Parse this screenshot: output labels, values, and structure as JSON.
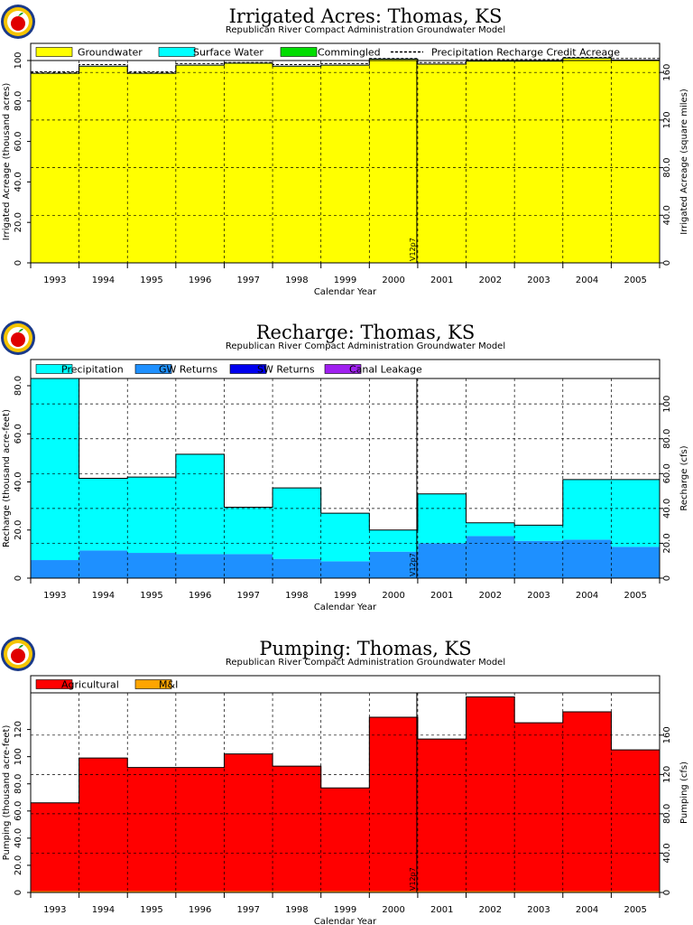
{
  "years": [
    "1993",
    "1994",
    "1995",
    "1996",
    "1997",
    "1998",
    "1999",
    "2000",
    "2001",
    "2002",
    "2003",
    "2004",
    "2005"
  ],
  "charts": [
    {
      "id": "acres",
      "title": "Irrigated Acres: Thomas, KS",
      "subtitle": "Republican River Compact Administration Groundwater Model",
      "xlabel": "Calendar Year",
      "ylabel_left": "Irrigated Acreage (thousand acres)",
      "ylabel_right": "Irrigated Acreage (square miles)",
      "left_ticks": [
        "0",
        "20.0",
        "40.0",
        "60.0",
        "80.0",
        "100"
      ],
      "right_ticks": [
        "0",
        "40.0",
        "80.0",
        "120",
        "160"
      ],
      "legend": [
        {
          "label": "Groundwater",
          "color": "#ffff00",
          "kind": "box"
        },
        {
          "label": "Surface Water",
          "color": "#00ffff",
          "kind": "box"
        },
        {
          "label": "Commingled",
          "color": "#00dd00",
          "kind": "box"
        },
        {
          "label": "Precipitation Recharge Credit Acreage",
          "color": "#000000",
          "kind": "dash"
        }
      ],
      "annotation": "V12p7",
      "chart_data": {
        "type": "area",
        "ylim": [
          0,
          100
        ],
        "y2lim": [
          0,
          170
        ],
        "series": [
          {
            "name": "Groundwater",
            "color": "#ffff00",
            "values": [
              93.5,
              97.0,
              93.5,
              97.5,
              98.5,
              97.0,
              97.5,
              100.5,
              98.0,
              99.5,
              99.5,
              101.0,
              100.0
            ]
          },
          {
            "name": "Surface Water",
            "color": "#00ffff",
            "values": [
              0.2,
              0.2,
              0.2,
              0.2,
              0.2,
              0.2,
              0.2,
              0.2,
              0.2,
              0.2,
              0.2,
              0.2,
              0.2
            ]
          },
          {
            "name": "Commingled",
            "color": "#00dd00",
            "values": [
              0,
              0,
              0,
              0,
              0,
              0,
              0,
              0,
              0,
              0,
              0,
              0,
              0
            ]
          }
        ],
        "precip_credit": [
          94.5,
          98.0,
          94.5,
          98.5,
          99.0,
          98.0,
          98.5,
          101.0,
          99.0,
          100.5,
          100.5,
          101.5,
          101.0
        ]
      }
    },
    {
      "id": "recharge",
      "title": "Recharge: Thomas, KS",
      "subtitle": "Republican River Compact Administration Groundwater Model",
      "xlabel": "Calendar Year",
      "ylabel_left": "Recharge (thousand acre-feet)",
      "ylabel_right": "Recharge (cfs)",
      "left_ticks": [
        "0",
        "20.0",
        "40.0",
        "60.0",
        "80.0"
      ],
      "right_ticks": [
        "0",
        "20.0",
        "40.0",
        "60.0",
        "80.0",
        "100"
      ],
      "legend": [
        {
          "label": "Precipitation",
          "color": "#00ffff",
          "kind": "box"
        },
        {
          "label": "GW Returns",
          "color": "#1e90ff",
          "kind": "box"
        },
        {
          "label": "SW Returns",
          "color": "#0000ee",
          "kind": "box"
        },
        {
          "label": "Canal Leakage",
          "color": "#a020f0",
          "kind": "box"
        }
      ],
      "annotation": "V12p7",
      "chart_data": {
        "type": "area",
        "ylim": [
          0,
          83
        ],
        "y2lim": [
          0,
          114.6
        ],
        "series": [
          {
            "name": "GW Returns",
            "color": "#1e90ff",
            "values": [
              7.5,
              11.5,
              10.5,
              10.0,
              10.0,
              8.0,
              7.0,
              11.0,
              14.5,
              17.5,
              15.5,
              16.0,
              13.0
            ]
          },
          {
            "name": "Precipitation",
            "color": "#00ffff",
            "values": [
              75.5,
              30.0,
              31.5,
              41.5,
              19.5,
              29.5,
              20.0,
              9.0,
              20.5,
              5.5,
              6.5,
              25.0,
              28.0
            ]
          },
          {
            "name": "SW Returns",
            "color": "#0000ee",
            "values": [
              0,
              0,
              0,
              0,
              0,
              0,
              0,
              0,
              0,
              0,
              0,
              0,
              0
            ]
          },
          {
            "name": "Canal Leakage",
            "color": "#a020f0",
            "values": [
              0,
              0,
              0,
              0,
              0,
              0,
              0,
              0,
              0,
              0,
              0,
              0,
              0
            ]
          }
        ]
      }
    },
    {
      "id": "pumping",
      "title": "Pumping: Thomas, KS",
      "subtitle": "Republican River Compact Administration Groundwater Model",
      "xlabel": "Calendar Year",
      "ylabel_left": "Pumping (thousand acre-feet)",
      "ylabel_right": "Pumping (cfs)",
      "left_ticks": [
        "0",
        "20.0",
        "40.0",
        "60.0",
        "80.0",
        "100",
        "120"
      ],
      "right_ticks": [
        "0",
        "40.0",
        "80.0",
        "120",
        "160"
      ],
      "legend": [
        {
          "label": "Agricultural",
          "color": "#ff0000",
          "kind": "box"
        },
        {
          "label": "M&I",
          "color": "#ffa500",
          "kind": "box"
        }
      ],
      "annotation": "V12p7",
      "chart_data": {
        "type": "area",
        "ylim": [
          0,
          147
        ],
        "y2lim": [
          0,
          203
        ],
        "series": [
          {
            "name": "M&I",
            "color": "#ffa500",
            "values": [
              1.0,
              1.0,
              1.0,
              1.0,
              1.0,
              1.0,
              1.0,
              1.0,
              1.0,
              1.0,
              1.0,
              1.0,
              1.0
            ]
          },
          {
            "name": "Agricultural",
            "color": "#ff0000",
            "values": [
              65.0,
              98.0,
              91.0,
              91.0,
              101.0,
              92.0,
              76.0,
              128.0,
              112.0,
              143.0,
              124.0,
              132.0,
              104.0
            ]
          }
        ]
      }
    }
  ]
}
